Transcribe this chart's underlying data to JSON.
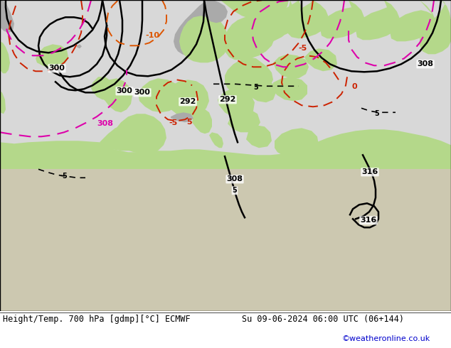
{
  "title_left": "Height/Temp. 700 hPa [gdmp][°C] ECMWF",
  "title_right": "Su 09-06-2024 06:00 UTC (06+144)",
  "credit": "©weatheronline.co.uk",
  "credit_color": "#0000cc",
  "sea_color": "#d8d8d8",
  "land_green": "#b4d88a",
  "land_gray": "#aaaaaa",
  "coast_color": "#666666",
  "black_lw": 1.8,
  "temp_lw": 1.4,
  "mag_lw": 1.5,
  "fig_w": 6.34,
  "fig_h": 4.9,
  "dpi": 100
}
